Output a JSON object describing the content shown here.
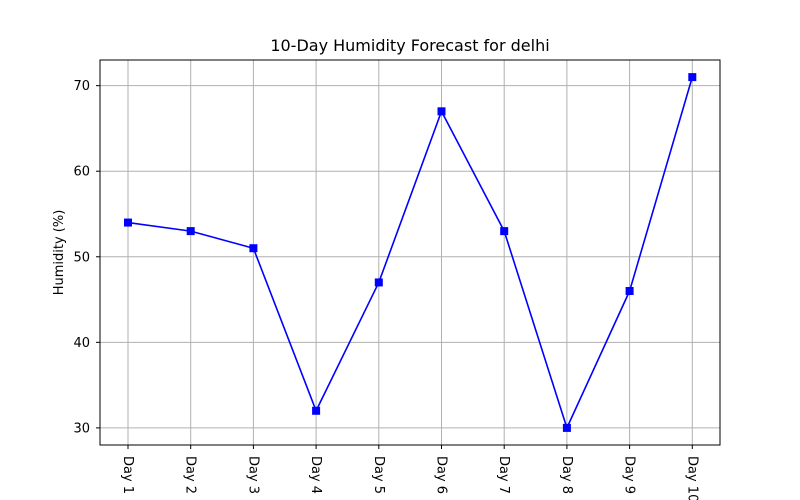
{
  "chart_data": {
    "type": "line",
    "title": "10-Day Humidity Forecast for delhi",
    "xlabel": "",
    "ylabel": "Humidity (%)",
    "categories": [
      "Day 1",
      "Day 2",
      "Day 3",
      "Day 4",
      "Day 5",
      "Day 6",
      "Day 7",
      "Day 8",
      "Day 9",
      "Day 10"
    ],
    "series": [
      {
        "values": [
          54,
          53,
          51,
          32,
          47,
          67,
          53,
          30,
          46,
          71
        ],
        "color": "#0000ff",
        "marker": "square"
      }
    ],
    "ylim": [
      28,
      73
    ],
    "yticks": [
      30,
      40,
      50,
      60,
      70
    ],
    "grid": true,
    "legend": "none"
  }
}
